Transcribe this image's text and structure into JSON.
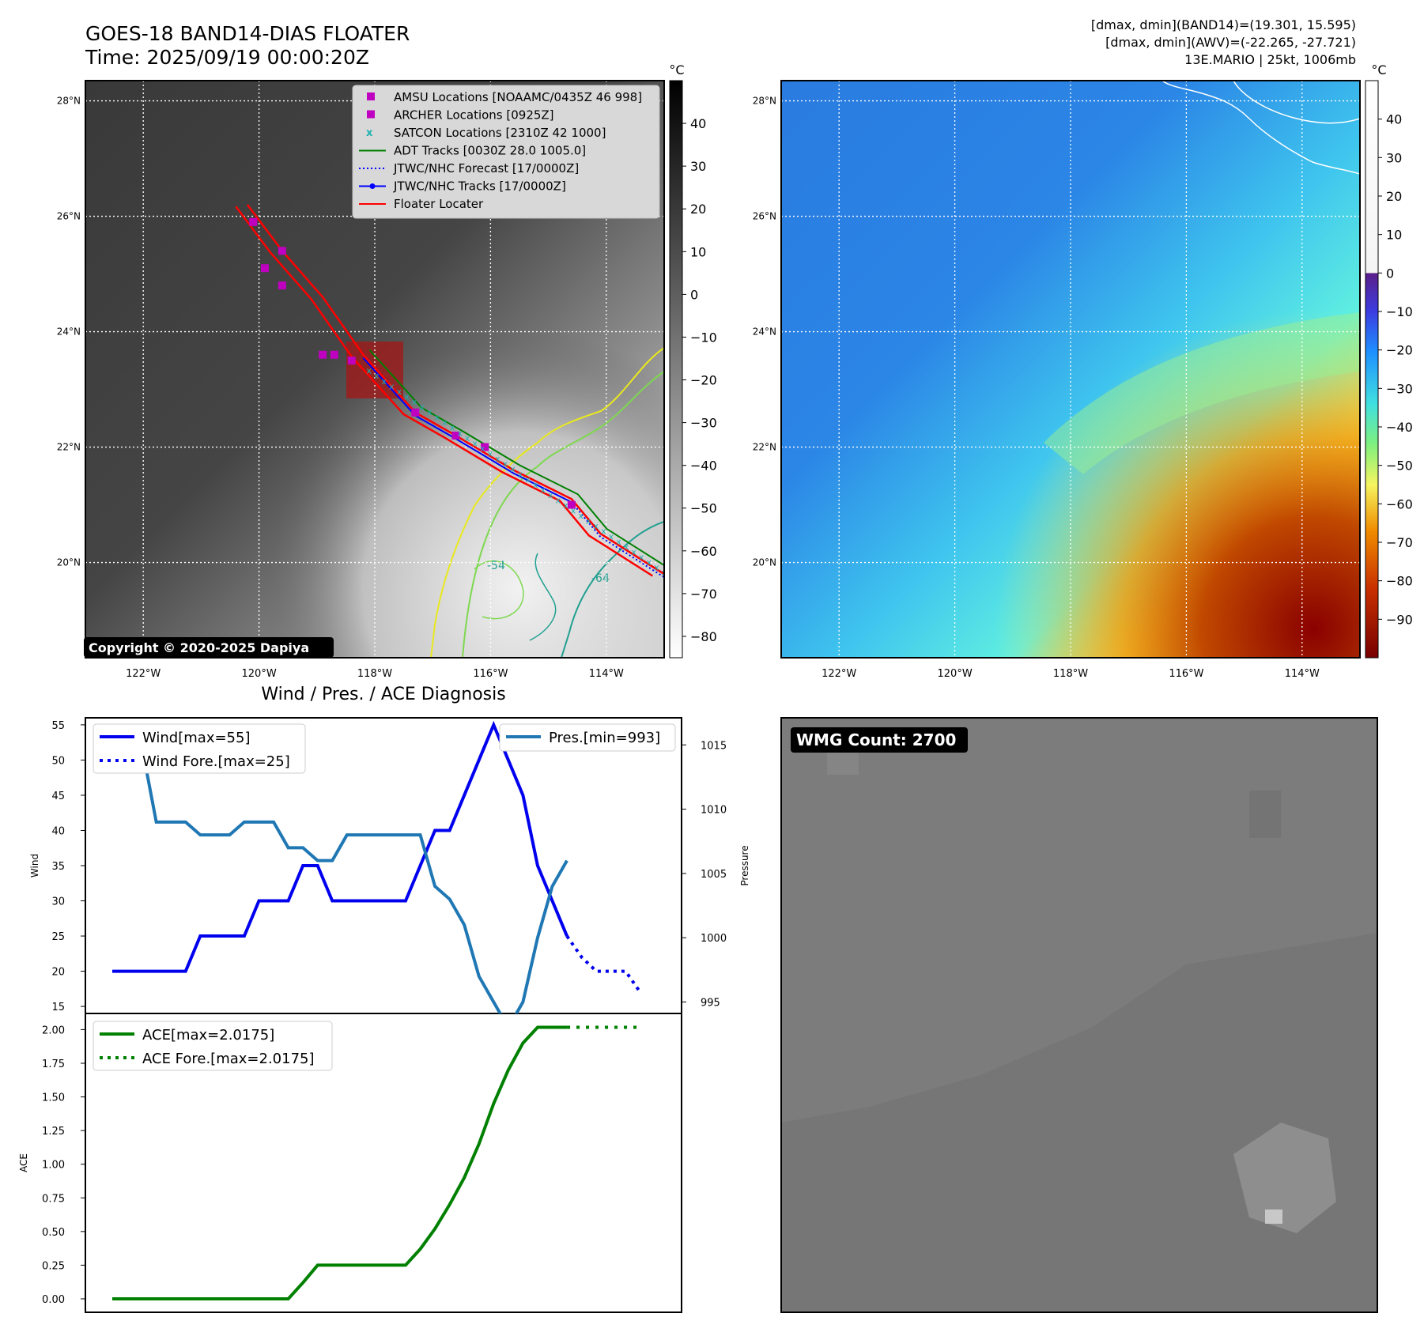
{
  "header": {
    "title_line1": "GOES-18 BAND14-DIAS FLOATER",
    "title_line2": "Time: 2025/09/19 00:00:20Z",
    "right_line1": "[dmax, dmin](BAND14)=(19.301, 15.595)",
    "right_line2": "[dmax, dmin](AWV)=(-22.265, -27.721)",
    "right_line3": "13E.MARIO | 25kt, 1006mb"
  },
  "map": {
    "lat_labels": [
      "28°N",
      "26°N",
      "24°N",
      "22°N",
      "20°N"
    ],
    "lon_labels": [
      "122°W",
      "120°W",
      "118°W",
      "116°W",
      "114°W"
    ],
    "copyright": "Copyright © 2020-2025 Dapiya",
    "contour_labels": [
      "-54",
      "-64"
    ],
    "legend": [
      {
        "label": "AMSU Locations [NOAAMC/0435Z 46 998]",
        "color": "#c000c0",
        "kind": "square"
      },
      {
        "label": "ARCHER Locations [0925Z]",
        "color": "#c000c0",
        "kind": "square"
      },
      {
        "label": "SATCON Locations [2310Z 42 1000]",
        "color": "#20b0b0",
        "kind": "cross"
      },
      {
        "label": "ADT Tracks [0030Z 28.0 1005.0]",
        "color": "#008000",
        "kind": "line"
      },
      {
        "label": "JTWC/NHC Forecast [17/0000Z]",
        "color": "#0000ff",
        "kind": "dotted"
      },
      {
        "label": "JTWC/NHC Tracks [17/0000Z]",
        "color": "#0000ff",
        "kind": "line-dot"
      },
      {
        "label": "Floater Locater",
        "color": "#ff0000",
        "kind": "line"
      }
    ],
    "track_points": [
      [
        -120.2,
        26.2
      ],
      [
        -119.6,
        25.4
      ],
      [
        -118.9,
        24.6
      ],
      [
        -118.2,
        23.6
      ],
      [
        -117.3,
        22.6
      ],
      [
        -116.6,
        22.2
      ],
      [
        -115.6,
        21.6
      ],
      [
        -114.6,
        21.1
      ],
      [
        -114.1,
        20.5
      ],
      [
        -113.0,
        19.8
      ]
    ],
    "amsu_points": [
      [
        -120.1,
        25.9
      ],
      [
        -119.6,
        25.4
      ],
      [
        -119.9,
        25.1
      ],
      [
        -119.6,
        24.8
      ],
      [
        -118.9,
        23.6
      ],
      [
        -118.7,
        23.6
      ],
      [
        -118.4,
        23.5
      ],
      [
        -117.3,
        22.6
      ],
      [
        -116.6,
        22.2
      ],
      [
        -116.1,
        22.0
      ],
      [
        -114.6,
        21.0
      ]
    ]
  },
  "colorbar_left": {
    "unit": "°C",
    "ticks": [
      "40",
      "30",
      "20",
      "10",
      "0",
      "−10",
      "−20",
      "−30",
      "−40",
      "−50",
      "−60",
      "−70",
      "−80"
    ],
    "range": [
      50,
      -85
    ]
  },
  "colorbar_right": {
    "unit": "°C",
    "ticks": [
      "40",
      "30",
      "20",
      "10",
      "0",
      "−10",
      "−20",
      "−30",
      "−40",
      "−50",
      "−60",
      "−70",
      "−80",
      "−90"
    ],
    "range": [
      50,
      -100
    ]
  },
  "diag_title": "Wind / Pres. / ACE Diagnosis",
  "wmg": {
    "label": "WMG Count: 2700"
  },
  "chart_data": [
    {
      "type": "line",
      "name": "wind-pressure",
      "x": [
        0,
        1,
        2,
        3,
        4,
        5,
        6,
        7,
        8,
        9,
        10,
        11,
        12,
        13,
        14,
        15,
        16,
        17,
        18,
        19,
        20,
        21,
        22,
        23,
        24,
        25,
        26,
        27,
        28,
        29,
        30,
        31
      ],
      "series": [
        {
          "name": "Wind[max=55]",
          "axis": "left",
          "color": "#0000ee",
          "style": "solid",
          "values": [
            20,
            20,
            20,
            20,
            20,
            20,
            25,
            25,
            25,
            25,
            30,
            30,
            30,
            35,
            35,
            30,
            30,
            30,
            30,
            30,
            30,
            35,
            40,
            40,
            45,
            50,
            55,
            50,
            45,
            35,
            30,
            25
          ]
        },
        {
          "name": "Wind Fore.[max=25]",
          "axis": "left",
          "color": "#0000ee",
          "style": "dotted",
          "x": [
            31,
            32,
            33,
            34,
            35,
            36
          ],
          "values": [
            25,
            22,
            20,
            20,
            20,
            17
          ]
        },
        {
          "name": "Pres.[min=993]",
          "axis": "right",
          "color": "#1f77b4",
          "style": "solid",
          "x": [
            0,
            1,
            2,
            3,
            4,
            5,
            6,
            7,
            8,
            9,
            10,
            11,
            12,
            13,
            14,
            15,
            16,
            17,
            18,
            19,
            20,
            21,
            22,
            23,
            24,
            25,
            26,
            27,
            28,
            29,
            30,
            31
          ],
          "values": [
            1015,
            1015,
            1015,
            1009,
            1009,
            1009,
            1008,
            1008,
            1008,
            1009,
            1009,
            1009,
            1007,
            1007,
            1006,
            1006,
            1008,
            1008,
            1008,
            1008,
            1008,
            1008,
            1004,
            1003,
            1001,
            997,
            995,
            993,
            995,
            1000,
            1004,
            1006
          ]
        }
      ],
      "ylabel": "Wind",
      "ylabel_right": "Pressure",
      "ylim": [
        14,
        56
      ],
      "ylim_right": [
        993,
        1016
      ],
      "yticks": [
        "55",
        "50",
        "45",
        "40",
        "35",
        "30",
        "25",
        "20",
        "15"
      ],
      "yticks_right": [
        "1015",
        "1010",
        "1005",
        "1000",
        "995"
      ],
      "legend_left": [
        "Wind[max=55]",
        "Wind Fore.[max=25]"
      ],
      "legend_right": [
        "Pres.[min=993]"
      ]
    },
    {
      "type": "line",
      "name": "ace",
      "series": [
        {
          "name": "ACE[max=2.0175]",
          "color": "#008000",
          "style": "solid",
          "x": [
            0,
            1,
            2,
            3,
            4,
            5,
            6,
            7,
            8,
            9,
            10,
            11,
            12,
            13,
            14,
            15,
            16,
            17,
            18,
            19,
            20,
            21,
            22,
            23,
            24,
            25,
            26,
            27,
            28,
            29,
            30,
            31
          ],
          "values": [
            0,
            0,
            0,
            0,
            0,
            0,
            0,
            0,
            0,
            0,
            0,
            0,
            0,
            0.12,
            0.25,
            0.25,
            0.25,
            0.25,
            0.25,
            0.25,
            0.25,
            0.37,
            0.52,
            0.7,
            0.9,
            1.15,
            1.45,
            1.7,
            1.9,
            2.0175,
            2.0175,
            2.0175
          ]
        },
        {
          "name": "ACE Fore.[max=2.0175]",
          "color": "#008000",
          "style": "dotted",
          "x": [
            31,
            32,
            33,
            34,
            35,
            36
          ],
          "values": [
            2.0175,
            2.0175,
            2.0175,
            2.0175,
            2.0175,
            2.0175
          ]
        }
      ],
      "ylabel": "ACE",
      "ylim": [
        -0.1,
        2.12
      ],
      "yticks": [
        "2.00",
        "1.75",
        "1.50",
        "1.25",
        "1.00",
        "0.75",
        "0.50",
        "0.25",
        "0.00"
      ]
    }
  ]
}
